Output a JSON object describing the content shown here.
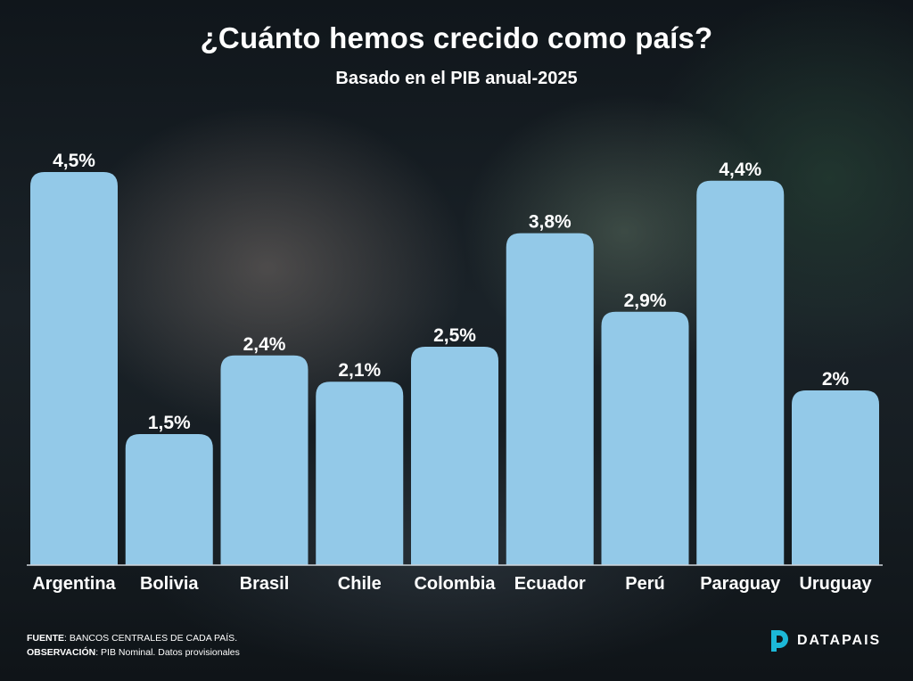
{
  "header": {
    "title": "¿Cuánto hemos crecido como país?",
    "subtitle": "Basado en el PIB anual-2025"
  },
  "chart_data": {
    "type": "bar",
    "title": "¿Cuánto hemos crecido como país?",
    "subtitle": "Basado en el PIB anual-2025",
    "categories": [
      "Argentina",
      "Bolivia",
      "Brasil",
      "Chile",
      "Colombia",
      "Ecuador",
      "Perú",
      "Paraguay",
      "Uruguay"
    ],
    "values": [
      4.5,
      1.5,
      2.4,
      2.1,
      2.5,
      3.8,
      2.9,
      4.4,
      2.0
    ],
    "data_labels": [
      "4,5%",
      "1,5%",
      "2,4%",
      "2,1%",
      "2,5%",
      "3,8%",
      "2,9%",
      "4,4%",
      "2%"
    ],
    "unit": "%",
    "ylim": [
      0,
      4.5
    ],
    "grid": false,
    "legend": "none",
    "bar_color": "#93c9e8"
  },
  "footer": {
    "source_key": "FUENTE",
    "source_value": ": BANCOS CENTRALES DE CADA PAÍS.",
    "note_key": "OBSERVACIÓN",
    "note_value": ": PIB Nominal. Datos provisionales"
  },
  "brand": {
    "name": "DATAPAIS",
    "accent_color": "#1cb8d8"
  }
}
